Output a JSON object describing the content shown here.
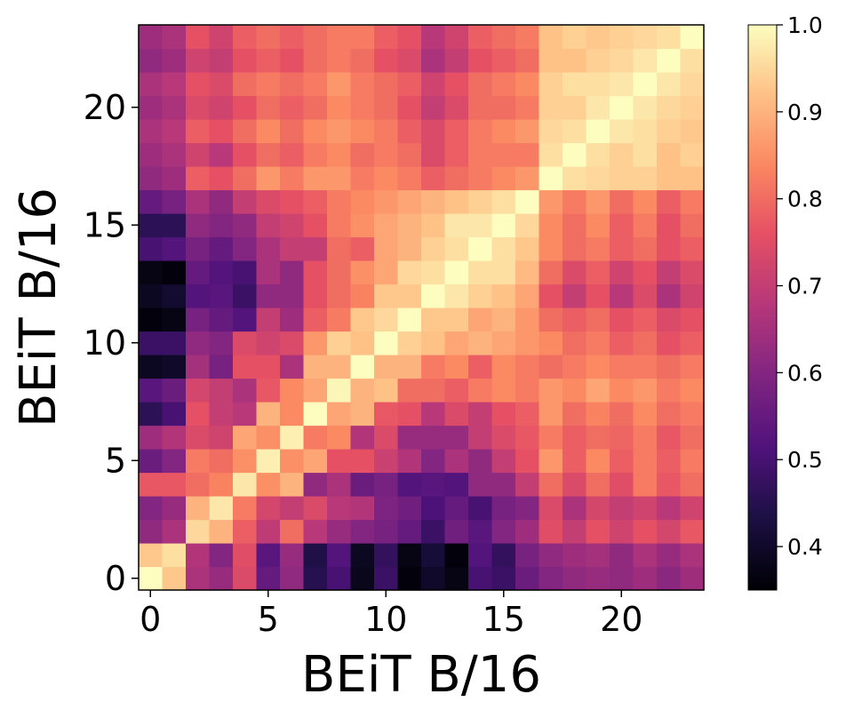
{
  "chart_data": {
    "type": "heatmap",
    "title": "",
    "xlabel": "BEiT B/16",
    "ylabel": "BEiT B/16",
    "rows": 24,
    "cols": 24,
    "x_ticks": [
      0,
      5,
      10,
      15,
      20
    ],
    "y_ticks": [
      0,
      5,
      10,
      15,
      20
    ],
    "colormap": "magma",
    "colorbar": {
      "min": 0.35,
      "max": 1.0,
      "ticks": [
        0.4,
        0.5,
        0.6,
        0.7,
        0.8,
        0.9,
        1.0
      ]
    },
    "grid": false,
    "values": [
      [
        1.0,
        0.93,
        0.66,
        0.63,
        0.74,
        0.55,
        0.62,
        0.45,
        0.5,
        0.38,
        0.48,
        0.36,
        0.4,
        0.37,
        0.5,
        0.48,
        0.56,
        0.6,
        0.62,
        0.63,
        0.62,
        0.64,
        0.61,
        0.64
      ],
      [
        0.93,
        0.96,
        0.67,
        0.6,
        0.75,
        0.53,
        0.63,
        0.44,
        0.52,
        0.39,
        0.47,
        0.37,
        0.42,
        0.36,
        0.52,
        0.47,
        0.58,
        0.62,
        0.64,
        0.65,
        0.62,
        0.66,
        0.63,
        0.66
      ],
      [
        0.62,
        0.66,
        0.95,
        0.9,
        0.78,
        0.69,
        0.8,
        0.68,
        0.63,
        0.6,
        0.58,
        0.55,
        0.48,
        0.57,
        0.53,
        0.6,
        0.64,
        0.75,
        0.7,
        0.76,
        0.72,
        0.76,
        0.73,
        0.77
      ],
      [
        0.6,
        0.63,
        0.9,
        0.97,
        0.82,
        0.73,
        0.7,
        0.74,
        0.68,
        0.67,
        0.59,
        0.57,
        0.51,
        0.55,
        0.5,
        0.58,
        0.6,
        0.74,
        0.66,
        0.73,
        0.7,
        0.72,
        0.68,
        0.72
      ],
      [
        0.77,
        0.77,
        0.8,
        0.83,
        0.97,
        0.85,
        0.9,
        0.62,
        0.66,
        0.56,
        0.58,
        0.52,
        0.53,
        0.52,
        0.62,
        0.62,
        0.7,
        0.8,
        0.74,
        0.8,
        0.75,
        0.82,
        0.77,
        0.8
      ],
      [
        0.56,
        0.6,
        0.82,
        0.8,
        0.85,
        0.98,
        0.85,
        0.88,
        0.76,
        0.76,
        0.71,
        0.67,
        0.6,
        0.66,
        0.62,
        0.7,
        0.76,
        0.86,
        0.78,
        0.84,
        0.78,
        0.82,
        0.78,
        0.82
      ],
      [
        0.64,
        0.67,
        0.74,
        0.72,
        0.88,
        0.85,
        0.98,
        0.82,
        0.84,
        0.67,
        0.74,
        0.63,
        0.63,
        0.63,
        0.7,
        0.74,
        0.77,
        0.82,
        0.78,
        0.8,
        0.79,
        0.82,
        0.77,
        0.8
      ],
      [
        0.46,
        0.5,
        0.76,
        0.7,
        0.68,
        0.9,
        0.84,
        1.0,
        0.88,
        0.9,
        0.77,
        0.76,
        0.68,
        0.74,
        0.7,
        0.76,
        0.78,
        0.86,
        0.8,
        0.83,
        0.8,
        0.84,
        0.8,
        0.82
      ],
      [
        0.53,
        0.56,
        0.73,
        0.7,
        0.66,
        0.77,
        0.84,
        0.88,
        0.99,
        0.9,
        0.92,
        0.8,
        0.8,
        0.78,
        0.82,
        0.84,
        0.82,
        0.86,
        0.84,
        0.88,
        0.84,
        0.86,
        0.82,
        0.84
      ],
      [
        0.39,
        0.4,
        0.65,
        0.58,
        0.76,
        0.76,
        0.66,
        0.9,
        0.9,
        1.0,
        0.9,
        0.9,
        0.82,
        0.84,
        0.78,
        0.84,
        0.82,
        0.8,
        0.82,
        0.84,
        0.82,
        0.82,
        0.8,
        0.82
      ],
      [
        0.48,
        0.48,
        0.62,
        0.6,
        0.74,
        0.72,
        0.74,
        0.86,
        0.94,
        0.92,
        1.0,
        0.94,
        0.92,
        0.88,
        0.9,
        0.88,
        0.86,
        0.84,
        0.8,
        0.82,
        0.78,
        0.8,
        0.76,
        0.78
      ],
      [
        0.36,
        0.37,
        0.58,
        0.55,
        0.52,
        0.7,
        0.64,
        0.78,
        0.82,
        0.93,
        0.95,
        1.0,
        0.93,
        0.93,
        0.88,
        0.9,
        0.86,
        0.8,
        0.78,
        0.8,
        0.76,
        0.78,
        0.74,
        0.76
      ],
      [
        0.39,
        0.41,
        0.52,
        0.53,
        0.48,
        0.62,
        0.62,
        0.76,
        0.8,
        0.83,
        0.93,
        0.93,
        1.0,
        0.97,
        0.94,
        0.92,
        0.88,
        0.76,
        0.7,
        0.76,
        0.68,
        0.74,
        0.66,
        0.72
      ],
      [
        0.37,
        0.36,
        0.55,
        0.52,
        0.5,
        0.66,
        0.62,
        0.76,
        0.8,
        0.85,
        0.88,
        0.95,
        0.96,
        1.0,
        0.96,
        0.96,
        0.91,
        0.8,
        0.74,
        0.78,
        0.72,
        0.76,
        0.7,
        0.74
      ],
      [
        0.5,
        0.52,
        0.58,
        0.55,
        0.6,
        0.66,
        0.7,
        0.7,
        0.8,
        0.78,
        0.88,
        0.9,
        0.94,
        0.96,
        1.0,
        0.96,
        0.93,
        0.84,
        0.8,
        0.82,
        0.78,
        0.8,
        0.76,
        0.78
      ],
      [
        0.46,
        0.46,
        0.62,
        0.6,
        0.62,
        0.7,
        0.72,
        0.76,
        0.82,
        0.85,
        0.88,
        0.9,
        0.92,
        0.97,
        0.97,
        1.0,
        0.95,
        0.84,
        0.8,
        0.84,
        0.78,
        0.82,
        0.76,
        0.8
      ],
      [
        0.55,
        0.58,
        0.66,
        0.62,
        0.7,
        0.74,
        0.76,
        0.78,
        0.82,
        0.84,
        0.86,
        0.88,
        0.9,
        0.92,
        0.94,
        0.96,
        1.0,
        0.86,
        0.82,
        0.86,
        0.8,
        0.84,
        0.78,
        0.82
      ],
      [
        0.62,
        0.64,
        0.78,
        0.76,
        0.8,
        0.86,
        0.82,
        0.86,
        0.86,
        0.82,
        0.84,
        0.82,
        0.78,
        0.8,
        0.82,
        0.84,
        0.86,
        1.0,
        0.96,
        0.95,
        0.94,
        0.94,
        0.92,
        0.92
      ],
      [
        0.64,
        0.66,
        0.72,
        0.68,
        0.76,
        0.8,
        0.78,
        0.82,
        0.84,
        0.8,
        0.82,
        0.8,
        0.74,
        0.78,
        0.82,
        0.82,
        0.82,
        0.96,
        1.0,
        0.96,
        0.94,
        0.96,
        0.92,
        0.94
      ],
      [
        0.66,
        0.68,
        0.78,
        0.76,
        0.8,
        0.84,
        0.8,
        0.84,
        0.86,
        0.84,
        0.82,
        0.78,
        0.74,
        0.78,
        0.82,
        0.84,
        0.86,
        0.95,
        0.96,
        1.0,
        0.97,
        0.96,
        0.94,
        0.93
      ],
      [
        0.64,
        0.66,
        0.74,
        0.72,
        0.76,
        0.8,
        0.78,
        0.8,
        0.84,
        0.82,
        0.8,
        0.76,
        0.7,
        0.74,
        0.8,
        0.8,
        0.82,
        0.94,
        0.94,
        0.97,
        1.0,
        0.97,
        0.95,
        0.94
      ],
      [
        0.66,
        0.68,
        0.76,
        0.74,
        0.8,
        0.82,
        0.8,
        0.82,
        0.86,
        0.82,
        0.8,
        0.78,
        0.72,
        0.76,
        0.8,
        0.82,
        0.84,
        0.94,
        0.96,
        0.96,
        0.97,
        1.0,
        0.97,
        0.95
      ],
      [
        0.62,
        0.64,
        0.72,
        0.7,
        0.76,
        0.78,
        0.76,
        0.8,
        0.82,
        0.8,
        0.76,
        0.74,
        0.66,
        0.7,
        0.76,
        0.78,
        0.8,
        0.92,
        0.92,
        0.94,
        0.95,
        0.97,
        1.0,
        0.96
      ],
      [
        0.64,
        0.66,
        0.76,
        0.72,
        0.78,
        0.8,
        0.78,
        0.8,
        0.82,
        0.82,
        0.78,
        0.76,
        0.68,
        0.72,
        0.78,
        0.8,
        0.82,
        0.92,
        0.94,
        0.93,
        0.94,
        0.95,
        0.96,
        1.0
      ]
    ]
  }
}
